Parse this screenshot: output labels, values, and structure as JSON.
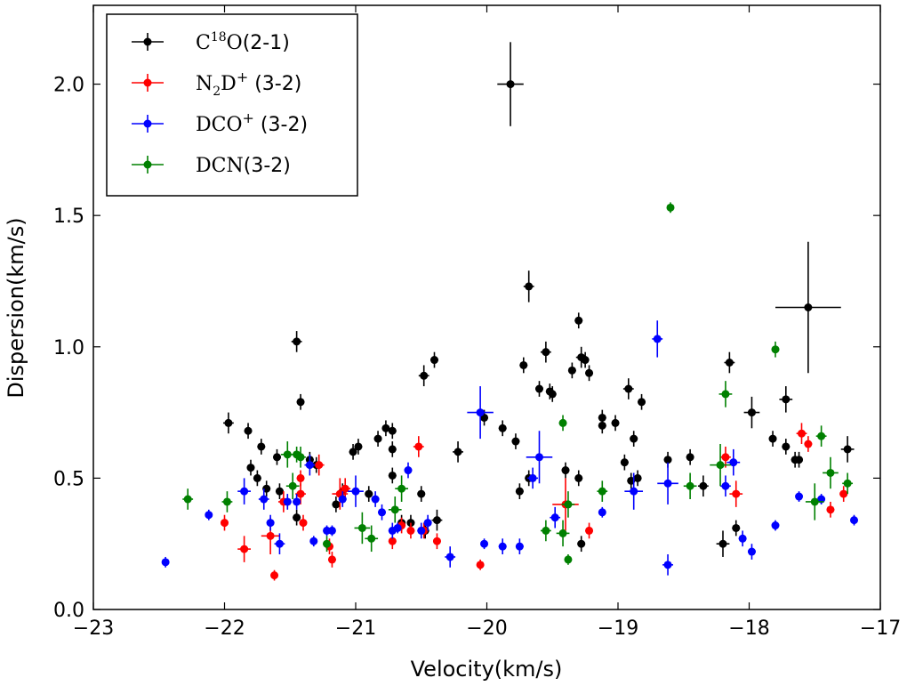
{
  "chart_data": {
    "type": "scatter",
    "title": "",
    "xlabel": "Velocity(km/s)",
    "ylabel": "Dispersion(km/s)",
    "xlim": [
      -23,
      -17
    ],
    "ylim": [
      0.0,
      2.3
    ],
    "grid": false,
    "legend_position": "top-left",
    "x_ticks": [
      -23,
      -22,
      -21,
      -20,
      -19,
      -18,
      -17
    ],
    "x_tick_labels": [
      "−23",
      "−22",
      "−21",
      "−20",
      "−19",
      "−18",
      "−17"
    ],
    "y_ticks": [
      0.0,
      0.5,
      1.0,
      1.5,
      2.0
    ],
    "y_tick_labels": [
      "0.0",
      "0.5",
      "1.0",
      "1.5",
      "2.0"
    ],
    "series": [
      {
        "name": "C18O(2-1)",
        "legend": {
          "base": "C",
          "sup": "18",
          "rest": "O",
          "tail": "(2-1)"
        },
        "color": "#000000",
        "points": [
          [
            -21.97,
            0.71,
            0.04,
            0.04
          ],
          [
            -21.82,
            0.68,
            0.03,
            0.03
          ],
          [
            -21.72,
            0.62,
            0.03,
            0.03
          ],
          [
            -21.8,
            0.54,
            0.03,
            0.03
          ],
          [
            -21.75,
            0.5,
            0.03,
            0.03
          ],
          [
            -21.68,
            0.46,
            0.03,
            0.03
          ],
          [
            -21.6,
            0.58,
            0.03,
            0.03
          ],
          [
            -21.58,
            0.45,
            0.03,
            0.03
          ],
          [
            -21.45,
            1.02,
            0.04,
            0.04
          ],
          [
            -21.42,
            0.79,
            0.03,
            0.03
          ],
          [
            -21.35,
            0.57,
            0.03,
            0.03
          ],
          [
            -21.3,
            0.55,
            0.03,
            0.03
          ],
          [
            -21.45,
            0.35,
            0.03,
            0.03
          ],
          [
            -21.15,
            0.4,
            0.03,
            0.03
          ],
          [
            -21.1,
            0.45,
            0.03,
            0.03
          ],
          [
            -21.02,
            0.6,
            0.03,
            0.03
          ],
          [
            -20.98,
            0.62,
            0.03,
            0.03
          ],
          [
            -20.9,
            0.44,
            0.03,
            0.03
          ],
          [
            -20.83,
            0.65,
            0.03,
            0.03
          ],
          [
            -20.77,
            0.69,
            0.03,
            0.03
          ],
          [
            -20.72,
            0.68,
            0.03,
            0.03
          ],
          [
            -20.72,
            0.61,
            0.03,
            0.03
          ],
          [
            -20.72,
            0.51,
            0.03,
            0.03
          ],
          [
            -20.65,
            0.33,
            0.03,
            0.03
          ],
          [
            -20.58,
            0.33,
            0.03,
            0.03
          ],
          [
            -20.5,
            0.44,
            0.03,
            0.03
          ],
          [
            -20.47,
            0.3,
            0.03,
            0.03
          ],
          [
            -20.38,
            0.34,
            0.04,
            0.04
          ],
          [
            -20.48,
            0.89,
            0.04,
            0.04
          ],
          [
            -20.4,
            0.95,
            0.03,
            0.03
          ],
          [
            -20.22,
            0.6,
            0.04,
            0.04
          ],
          [
            -20.02,
            0.73,
            0.03,
            0.03
          ],
          [
            -19.88,
            0.69,
            0.03,
            0.03
          ],
          [
            -19.82,
            2.0,
            0.1,
            0.16
          ],
          [
            -19.68,
            1.23,
            0.04,
            0.06
          ],
          [
            -19.72,
            0.93,
            0.03,
            0.03
          ],
          [
            -19.78,
            0.64,
            0.03,
            0.03
          ],
          [
            -19.75,
            0.45,
            0.03,
            0.03
          ],
          [
            -19.68,
            0.5,
            0.03,
            0.03
          ],
          [
            -19.6,
            0.84,
            0.03,
            0.03
          ],
          [
            -19.55,
            0.98,
            0.04,
            0.04
          ],
          [
            -19.52,
            0.83,
            0.03,
            0.03
          ],
          [
            -19.5,
            0.82,
            0.03,
            0.03
          ],
          [
            -19.4,
            0.53,
            0.03,
            0.03
          ],
          [
            -19.35,
            0.91,
            0.03,
            0.03
          ],
          [
            -19.3,
            1.1,
            0.03,
            0.03
          ],
          [
            -19.28,
            0.96,
            0.04,
            0.04
          ],
          [
            -19.25,
            0.95,
            0.03,
            0.03
          ],
          [
            -19.22,
            0.9,
            0.03,
            0.03
          ],
          [
            -19.3,
            0.5,
            0.03,
            0.03
          ],
          [
            -19.28,
            0.25,
            0.03,
            0.03
          ],
          [
            -19.12,
            0.73,
            0.03,
            0.03
          ],
          [
            -19.12,
            0.7,
            0.03,
            0.03
          ],
          [
            -19.02,
            0.71,
            0.03,
            0.03
          ],
          [
            -18.92,
            0.84,
            0.04,
            0.04
          ],
          [
            -18.88,
            0.65,
            0.03,
            0.03
          ],
          [
            -18.82,
            0.79,
            0.03,
            0.03
          ],
          [
            -18.95,
            0.56,
            0.03,
            0.03
          ],
          [
            -18.9,
            0.49,
            0.03,
            0.03
          ],
          [
            -18.85,
            0.5,
            0.03,
            0.03
          ],
          [
            -18.62,
            0.57,
            0.03,
            0.03
          ],
          [
            -18.45,
            0.58,
            0.03,
            0.03
          ],
          [
            -18.35,
            0.47,
            0.04,
            0.04
          ],
          [
            -18.2,
            0.25,
            0.05,
            0.05
          ],
          [
            -18.15,
            0.94,
            0.04,
            0.04
          ],
          [
            -18.1,
            0.31,
            0.03,
            0.03
          ],
          [
            -17.98,
            0.75,
            0.06,
            0.06
          ],
          [
            -17.82,
            0.65,
            0.03,
            0.03
          ],
          [
            -17.72,
            0.8,
            0.05,
            0.05
          ],
          [
            -17.72,
            0.62,
            0.03,
            0.03
          ],
          [
            -17.65,
            0.57,
            0.03,
            0.03
          ],
          [
            -17.62,
            0.57,
            0.03,
            0.03
          ],
          [
            -17.55,
            1.15,
            0.25,
            0.25
          ],
          [
            -17.25,
            0.61,
            0.05,
            0.05
          ]
        ]
      },
      {
        "name": "N2D+(3-2)",
        "legend": {
          "base": "N",
          "sub": "2",
          "rest": "D",
          "sup": "+",
          "tail": "(3-2)"
        },
        "color": "#ff0000",
        "points": [
          [
            -22.0,
            0.33,
            0.03,
            0.03
          ],
          [
            -21.85,
            0.23,
            0.05,
            0.05
          ],
          [
            -21.65,
            0.28,
            0.07,
            0.07
          ],
          [
            -21.62,
            0.13,
            0.02,
            0.02
          ],
          [
            -21.55,
            0.41,
            0.04,
            0.04
          ],
          [
            -21.42,
            0.44,
            0.04,
            0.04
          ],
          [
            -21.42,
            0.5,
            0.03,
            0.03
          ],
          [
            -21.4,
            0.33,
            0.03,
            0.03
          ],
          [
            -21.28,
            0.55,
            0.04,
            0.04
          ],
          [
            -21.2,
            0.24,
            0.03,
            0.03
          ],
          [
            -21.18,
            0.19,
            0.03,
            0.03
          ],
          [
            -21.12,
            0.44,
            0.06,
            0.06
          ],
          [
            -21.08,
            0.46,
            0.04,
            0.04
          ],
          [
            -20.72,
            0.26,
            0.03,
            0.03
          ],
          [
            -20.65,
            0.32,
            0.03,
            0.03
          ],
          [
            -20.58,
            0.3,
            0.03,
            0.03
          ],
          [
            -20.52,
            0.62,
            0.04,
            0.04
          ],
          [
            -20.48,
            0.3,
            0.03,
            0.03
          ],
          [
            -20.38,
            0.26,
            0.03,
            0.03
          ],
          [
            -20.05,
            0.17,
            0.02,
            0.02
          ],
          [
            -19.4,
            0.4,
            0.1,
            0.1
          ],
          [
            -19.22,
            0.3,
            0.03,
            0.03
          ],
          [
            -18.18,
            0.58,
            0.04,
            0.04
          ],
          [
            -18.1,
            0.44,
            0.05,
            0.05
          ],
          [
            -17.6,
            0.67,
            0.04,
            0.04
          ],
          [
            -17.55,
            0.63,
            0.03,
            0.03
          ],
          [
            -17.38,
            0.38,
            0.03,
            0.03
          ],
          [
            -17.28,
            0.44,
            0.03,
            0.03
          ]
        ]
      },
      {
        "name": "DCO+(3-2)",
        "legend": {
          "base": "DCO",
          "sup": "+",
          "tail": "(3-2)"
        },
        "color": "#0000ff",
        "points": [
          [
            -22.45,
            0.18,
            0.02,
            0.02
          ],
          [
            -22.12,
            0.36,
            0.02,
            0.02
          ],
          [
            -21.85,
            0.45,
            0.05,
            0.05
          ],
          [
            -21.7,
            0.42,
            0.04,
            0.04
          ],
          [
            -21.65,
            0.33,
            0.03,
            0.03
          ],
          [
            -21.58,
            0.25,
            0.04,
            0.04
          ],
          [
            -21.52,
            0.41,
            0.03,
            0.03
          ],
          [
            -21.45,
            0.41,
            0.03,
            0.03
          ],
          [
            -21.35,
            0.55,
            0.04,
            0.04
          ],
          [
            -21.32,
            0.26,
            0.02,
            0.02
          ],
          [
            -21.22,
            0.3,
            0.02,
            0.02
          ],
          [
            -21.18,
            0.3,
            0.02,
            0.02
          ],
          [
            -21.1,
            0.42,
            0.03,
            0.03
          ],
          [
            -21.0,
            0.45,
            0.06,
            0.06
          ],
          [
            -20.85,
            0.42,
            0.03,
            0.03
          ],
          [
            -20.8,
            0.37,
            0.03,
            0.03
          ],
          [
            -20.72,
            0.3,
            0.03,
            0.03
          ],
          [
            -20.68,
            0.31,
            0.02,
            0.02
          ],
          [
            -20.6,
            0.53,
            0.03,
            0.03
          ],
          [
            -20.5,
            0.3,
            0.03,
            0.03
          ],
          [
            -20.45,
            0.33,
            0.03,
            0.03
          ],
          [
            -20.28,
            0.2,
            0.04,
            0.04
          ],
          [
            -20.05,
            0.75,
            0.1,
            0.1
          ],
          [
            -20.02,
            0.25,
            0.02,
            0.02
          ],
          [
            -19.88,
            0.24,
            0.03,
            0.03
          ],
          [
            -19.75,
            0.24,
            0.03,
            0.03
          ],
          [
            -19.65,
            0.5,
            0.04,
            0.04
          ],
          [
            -19.6,
            0.58,
            0.1,
            0.1
          ],
          [
            -19.48,
            0.35,
            0.04,
            0.04
          ],
          [
            -19.12,
            0.37,
            0.02,
            0.02
          ],
          [
            -18.88,
            0.45,
            0.07,
            0.07
          ],
          [
            -18.7,
            1.03,
            0.04,
            0.07
          ],
          [
            -18.62,
            0.48,
            0.08,
            0.08
          ],
          [
            -18.62,
            0.17,
            0.04,
            0.04
          ],
          [
            -18.18,
            0.47,
            0.04,
            0.04
          ],
          [
            -18.12,
            0.56,
            0.05,
            0.05
          ],
          [
            -18.05,
            0.27,
            0.03,
            0.03
          ],
          [
            -17.98,
            0.22,
            0.03,
            0.03
          ],
          [
            -17.8,
            0.32,
            0.02,
            0.02
          ],
          [
            -17.62,
            0.43,
            0.02,
            0.02
          ],
          [
            -17.45,
            0.42,
            0.02,
            0.02
          ],
          [
            -17.2,
            0.34,
            0.02,
            0.02
          ]
        ]
      },
      {
        "name": "DCN(3-2)",
        "legend": {
          "base": "DCN",
          "tail": "(3-2)"
        },
        "color": "#008000",
        "points": [
          [
            -22.28,
            0.42,
            0.04,
            0.04
          ],
          [
            -21.98,
            0.41,
            0.04,
            0.04
          ],
          [
            -21.52,
            0.59,
            0.05,
            0.05
          ],
          [
            -21.45,
            0.59,
            0.03,
            0.03
          ],
          [
            -21.48,
            0.47,
            0.05,
            0.05
          ],
          [
            -21.42,
            0.58,
            0.04,
            0.04
          ],
          [
            -21.22,
            0.25,
            0.03,
            0.03
          ],
          [
            -20.95,
            0.31,
            0.06,
            0.06
          ],
          [
            -20.88,
            0.27,
            0.05,
            0.05
          ],
          [
            -20.7,
            0.38,
            0.05,
            0.05
          ],
          [
            -20.65,
            0.46,
            0.05,
            0.05
          ],
          [
            -19.55,
            0.3,
            0.04,
            0.04
          ],
          [
            -19.42,
            0.71,
            0.03,
            0.03
          ],
          [
            -19.42,
            0.29,
            0.05,
            0.05
          ],
          [
            -19.38,
            0.4,
            0.05,
            0.05
          ],
          [
            -19.38,
            0.19,
            0.02,
            0.02
          ],
          [
            -19.12,
            0.45,
            0.04,
            0.04
          ],
          [
            -18.6,
            1.53,
            0.02,
            0.02
          ],
          [
            -18.45,
            0.47,
            0.05,
            0.05
          ],
          [
            -18.22,
            0.55,
            0.08,
            0.08
          ],
          [
            -18.18,
            0.82,
            0.05,
            0.05
          ],
          [
            -17.8,
            0.99,
            0.03,
            0.03
          ],
          [
            -17.5,
            0.41,
            0.07,
            0.07
          ],
          [
            -17.45,
            0.66,
            0.04,
            0.04
          ],
          [
            -17.38,
            0.52,
            0.06,
            0.06
          ],
          [
            -17.25,
            0.48,
            0.04,
            0.04
          ]
        ]
      }
    ]
  }
}
